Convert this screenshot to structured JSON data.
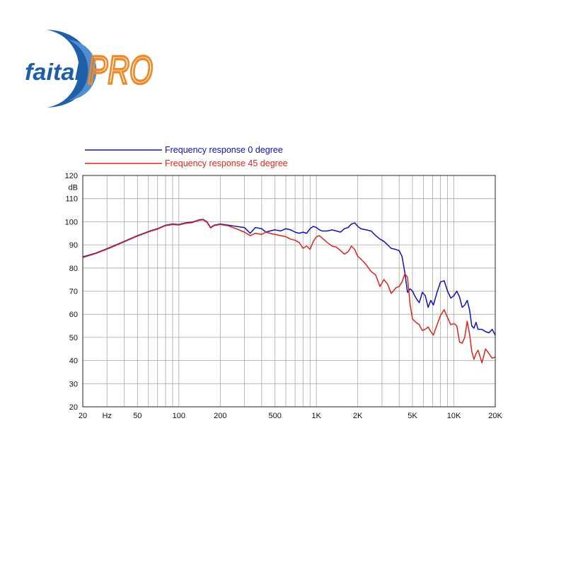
{
  "logo": {
    "wordmark": "faital",
    "badge": "PRO",
    "colors": {
      "blue": "#1e5fa8",
      "orange": "#ee8a2a"
    }
  },
  "chart_data": {
    "type": "line",
    "title": "",
    "x_scale": "log",
    "y_scale": "linear",
    "xlim": [
      20,
      20000
    ],
    "ylim": [
      20,
      120
    ],
    "y_unit_label": "dB",
    "x_unit_label": "Hz",
    "grid": true,
    "legend_position": "top-left",
    "y_ticks": [
      {
        "value": 20,
        "label": "20"
      },
      {
        "value": 30,
        "label": "30"
      },
      {
        "value": 40,
        "label": "40"
      },
      {
        "value": 50,
        "label": "50"
      },
      {
        "value": 60,
        "label": "60"
      },
      {
        "value": 70,
        "label": "70"
      },
      {
        "value": 80,
        "label": "80"
      },
      {
        "value": 90,
        "label": "90"
      },
      {
        "value": 100,
        "label": "100"
      },
      {
        "value": 110,
        "label": "110"
      },
      {
        "value": 120,
        "label": "120"
      }
    ],
    "x_ticks": [
      {
        "value": 20,
        "label": "20"
      },
      {
        "value": 50,
        "label": "50"
      },
      {
        "value": 100,
        "label": "100"
      },
      {
        "value": 200,
        "label": "200"
      },
      {
        "value": 500,
        "label": "500"
      },
      {
        "value": 1000,
        "label": "1K"
      },
      {
        "value": 2000,
        "label": "2K"
      },
      {
        "value": 5000,
        "label": "5K"
      },
      {
        "value": 10000,
        "label": "10K"
      },
      {
        "value": 20000,
        "label": "20K"
      }
    ],
    "x_unit_tick_value": 30,
    "series": [
      {
        "name": "Frequency response 0 degree",
        "color": "#1010b8",
        "points": [
          [
            20,
            84.8
          ],
          [
            25,
            86.5
          ],
          [
            32,
            89.0
          ],
          [
            40,
            91.5
          ],
          [
            50,
            94.0
          ],
          [
            63,
            96.2
          ],
          [
            70,
            97.0
          ],
          [
            80,
            98.5
          ],
          [
            90,
            99.0
          ],
          [
            100,
            98.8
          ],
          [
            112,
            99.5
          ],
          [
            125,
            99.8
          ],
          [
            140,
            100.8
          ],
          [
            150,
            101.0
          ],
          [
            160,
            100.0
          ],
          [
            170,
            97.5
          ],
          [
            180,
            98.5
          ],
          [
            200,
            99.0
          ],
          [
            230,
            98.5
          ],
          [
            260,
            98.0
          ],
          [
            300,
            97.5
          ],
          [
            330,
            95.0
          ],
          [
            360,
            97.5
          ],
          [
            400,
            97.0
          ],
          [
            430,
            95.5
          ],
          [
            460,
            96.0
          ],
          [
            500,
            96.5
          ],
          [
            550,
            96.0
          ],
          [
            600,
            97.0
          ],
          [
            650,
            96.5
          ],
          [
            700,
            95.5
          ],
          [
            750,
            95.0
          ],
          [
            800,
            95.5
          ],
          [
            850,
            95.0
          ],
          [
            900,
            97.0
          ],
          [
            950,
            98.0
          ],
          [
            1000,
            97.5
          ],
          [
            1050,
            96.5
          ],
          [
            1100,
            96.0
          ],
          [
            1200,
            96.0
          ],
          [
            1300,
            96.5
          ],
          [
            1400,
            96.0
          ],
          [
            1500,
            95.5
          ],
          [
            1600,
            97.0
          ],
          [
            1700,
            97.5
          ],
          [
            1800,
            99.0
          ],
          [
            1900,
            99.5
          ],
          [
            2000,
            98.0
          ],
          [
            2100,
            97.0
          ],
          [
            2300,
            96.5
          ],
          [
            2500,
            96.0
          ],
          [
            2700,
            94.0
          ],
          [
            2900,
            92.5
          ],
          [
            3100,
            91.5
          ],
          [
            3300,
            90.0
          ],
          [
            3500,
            88.5
          ],
          [
            3800,
            88.0
          ],
          [
            4000,
            87.5
          ],
          [
            4200,
            85.0
          ],
          [
            4400,
            78.0
          ],
          [
            4600,
            69.5
          ],
          [
            4800,
            71.0
          ],
          [
            5000,
            70.0
          ],
          [
            5300,
            67.0
          ],
          [
            5600,
            65.0
          ],
          [
            5900,
            69.5
          ],
          [
            6200,
            68.0
          ],
          [
            6500,
            63.0
          ],
          [
            6800,
            66.0
          ],
          [
            7100,
            64.0
          ],
          [
            7500,
            69.0
          ],
          [
            8000,
            74.0
          ],
          [
            8500,
            74.5
          ],
          [
            9000,
            70.0
          ],
          [
            9500,
            67.0
          ],
          [
            10000,
            68.0
          ],
          [
            10500,
            70.0
          ],
          [
            11000,
            67.5
          ],
          [
            11500,
            63.0
          ],
          [
            12000,
            64.0
          ],
          [
            12500,
            66.0
          ],
          [
            13000,
            62.0
          ],
          [
            13500,
            55.0
          ],
          [
            14000,
            54.0
          ],
          [
            14500,
            56.5
          ],
          [
            15000,
            53.5
          ],
          [
            16000,
            53.5
          ],
          [
            17000,
            52.5
          ],
          [
            18000,
            52.0
          ],
          [
            19000,
            53.5
          ],
          [
            20000,
            51.0
          ]
        ]
      },
      {
        "name": "Frequency response 45 degree",
        "color": "#d8261c",
        "points": [
          [
            20,
            84.5
          ],
          [
            25,
            86.3
          ],
          [
            32,
            88.8
          ],
          [
            40,
            91.3
          ],
          [
            50,
            93.8
          ],
          [
            63,
            96.0
          ],
          [
            70,
            96.8
          ],
          [
            80,
            98.3
          ],
          [
            90,
            98.8
          ],
          [
            100,
            98.6
          ],
          [
            112,
            99.3
          ],
          [
            125,
            99.6
          ],
          [
            140,
            100.6
          ],
          [
            150,
            100.8
          ],
          [
            160,
            99.8
          ],
          [
            170,
            97.3
          ],
          [
            180,
            98.3
          ],
          [
            200,
            98.8
          ],
          [
            230,
            98.2
          ],
          [
            260,
            97.0
          ],
          [
            300,
            95.5
          ],
          [
            330,
            94.0
          ],
          [
            360,
            95.0
          ],
          [
            400,
            94.5
          ],
          [
            430,
            95.5
          ],
          [
            460,
            95.0
          ],
          [
            500,
            94.5
          ],
          [
            550,
            94.0
          ],
          [
            600,
            93.5
          ],
          [
            650,
            92.5
          ],
          [
            700,
            92.0
          ],
          [
            750,
            91.0
          ],
          [
            800,
            88.5
          ],
          [
            850,
            89.5
          ],
          [
            900,
            88.0
          ],
          [
            950,
            91.5
          ],
          [
            1000,
            93.5
          ],
          [
            1050,
            94.0
          ],
          [
            1100,
            93.0
          ],
          [
            1200,
            91.0
          ],
          [
            1300,
            89.5
          ],
          [
            1400,
            89.0
          ],
          [
            1500,
            87.5
          ],
          [
            1600,
            86.0
          ],
          [
            1700,
            87.0
          ],
          [
            1800,
            89.5
          ],
          [
            1900,
            88.0
          ],
          [
            2000,
            85.0
          ],
          [
            2100,
            84.0
          ],
          [
            2300,
            81.5
          ],
          [
            2500,
            78.5
          ],
          [
            2700,
            77.0
          ],
          [
            2900,
            72.0
          ],
          [
            3100,
            75.0
          ],
          [
            3300,
            73.0
          ],
          [
            3500,
            69.0
          ],
          [
            3800,
            71.5
          ],
          [
            4000,
            72.0
          ],
          [
            4200,
            74.0
          ],
          [
            4400,
            77.5
          ],
          [
            4600,
            76.0
          ],
          [
            4800,
            64.5
          ],
          [
            5000,
            58.0
          ],
          [
            5300,
            56.5
          ],
          [
            5600,
            55.5
          ],
          [
            5900,
            53.0
          ],
          [
            6200,
            53.5
          ],
          [
            6500,
            54.5
          ],
          [
            6800,
            52.5
          ],
          [
            7100,
            51.0
          ],
          [
            7500,
            55.0
          ],
          [
            8000,
            59.5
          ],
          [
            8500,
            62.0
          ],
          [
            9000,
            58.5
          ],
          [
            9500,
            55.5
          ],
          [
            10000,
            56.0
          ],
          [
            10500,
            55.0
          ],
          [
            11000,
            48.0
          ],
          [
            11500,
            47.5
          ],
          [
            12000,
            50.0
          ],
          [
            12500,
            57.0
          ],
          [
            13000,
            51.5
          ],
          [
            13500,
            44.0
          ],
          [
            14000,
            40.5
          ],
          [
            14500,
            43.0
          ],
          [
            15000,
            44.5
          ],
          [
            16000,
            39.0
          ],
          [
            17000,
            45.0
          ],
          [
            18000,
            43.0
          ],
          [
            19000,
            41.0
          ],
          [
            20000,
            41.5
          ]
        ]
      }
    ]
  }
}
